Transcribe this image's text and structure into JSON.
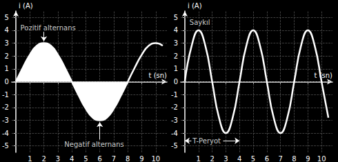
{
  "chart_data": [
    {
      "type": "line",
      "xlabel": "t (sn)",
      "ylabel": "i (A)",
      "x": [
        0,
        0.5,
        1,
        1.5,
        2,
        2.5,
        3,
        3.5,
        4,
        4.5,
        5,
        5.5,
        6,
        6.5,
        7,
        7.5,
        8,
        8.5,
        9,
        9.5,
        10,
        10.5
      ],
      "series": [
        {
          "type": "area",
          "color": "#ffffff",
          "values": [
            0,
            1.1,
            2.1,
            2.8,
            3,
            2.8,
            2.1,
            1.1,
            0,
            -1.1,
            -2.1,
            -2.8,
            -3,
            -2.8,
            -2.1,
            -1.1,
            0,
            null,
            null,
            null,
            null,
            null
          ]
        },
        {
          "type": "line",
          "color": "#ffffff",
          "values": [
            null,
            null,
            null,
            null,
            null,
            null,
            null,
            null,
            null,
            null,
            null,
            null,
            null,
            null,
            null,
            null,
            0,
            1.1,
            2.1,
            2.8,
            3,
            2.8
          ]
        }
      ],
      "xlim": [
        -0.3,
        10.8
      ],
      "ylim": [
        -5.5,
        5.5
      ],
      "xticks": [
        1,
        2,
        3,
        4,
        5,
        6,
        7,
        8,
        9,
        10
      ],
      "yticks": [
        -5,
        -4,
        -3,
        -2,
        -1,
        0,
        1,
        2,
        3,
        4,
        5
      ],
      "grid": true,
      "annotations": [
        {
          "text": "Pozitif alternans",
          "x": 2.3,
          "y": 4.2,
          "arrows": [
            [
              [
                2,
                3.9
              ],
              [
                2,
                3.15
              ]
            ]
          ]
        },
        {
          "text": "Negatif alternans",
          "x": 5.6,
          "y": -4.9,
          "arrows": [
            [
              [
                6,
                -4.5
              ],
              [
                6,
                -3.15
              ]
            ]
          ]
        }
      ]
    },
    {
      "type": "line",
      "xlabel": "t (sn)",
      "ylabel": "i (A)",
      "x": [
        0,
        0.5,
        1,
        1.5,
        2,
        2.5,
        3,
        3.5,
        4,
        4.5,
        5,
        5.5,
        6,
        6.5,
        7,
        7.5,
        8,
        8.5,
        9,
        9.5,
        10,
        10.5
      ],
      "series": [
        {
          "type": "line",
          "color": "#ffffff",
          "values": [
            0,
            2.8,
            4,
            2.8,
            0,
            -2.8,
            -4,
            -2.8,
            0,
            2.8,
            4,
            2.8,
            0,
            -2.8,
            -4,
            -2.8,
            0,
            2.8,
            4,
            2.8,
            0,
            -2.8
          ]
        }
      ],
      "xlim": [
        -0.3,
        10.8
      ],
      "ylim": [
        -5.5,
        5.5
      ],
      "xticks": [
        1,
        2,
        3,
        4,
        5,
        6,
        7,
        8,
        9,
        10
      ],
      "yticks": [
        -5,
        -4,
        -3,
        -2,
        -1,
        0,
        1,
        2,
        3,
        4,
        5
      ],
      "grid": true,
      "annotations": [
        {
          "text": "Saykıl",
          "x": 1.1,
          "y": 4.6,
          "arrows": []
        },
        {
          "text": "T-Peryot",
          "x": 1.6,
          "y": -4.6,
          "arrows": [
            [
              [
                0.5,
                -4.6
              ],
              [
                0,
                -4.6
              ]
            ],
            [
              [
                2.8,
                -4.6
              ],
              [
                4,
                -4.6
              ]
            ]
          ]
        }
      ]
    }
  ]
}
